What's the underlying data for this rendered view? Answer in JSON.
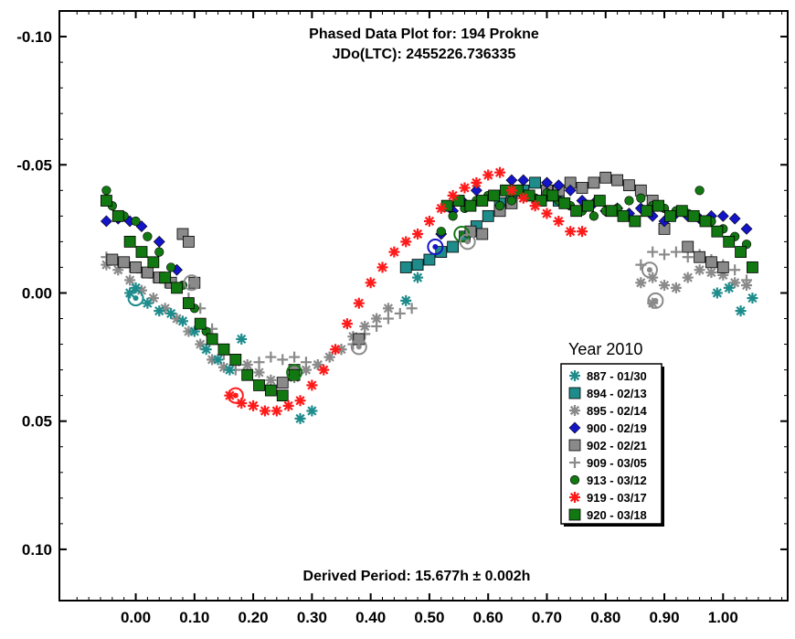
{
  "chart_data": {
    "type": "scatter",
    "title": "Phased Data Plot for: 194 Prokne",
    "subtitle": "JDo(LTC): 2455226.736335",
    "annotation": "Derived Period: 15.677h ± 0.002h",
    "xlim": [
      -0.13,
      1.11
    ],
    "ylim": [
      0.12,
      -0.11
    ],
    "y_inverted": true,
    "x_ticks": [
      "0.00",
      "0.10",
      "0.20",
      "0.30",
      "0.40",
      "0.50",
      "0.60",
      "0.70",
      "0.80",
      "0.90",
      "1.00"
    ],
    "y_ticks": [
      "-0.10",
      "-0.05",
      "0.00",
      "0.05",
      "0.10"
    ],
    "legend_title": "Year 2010",
    "legend_position": "center-right",
    "series": [
      {
        "name": "887 - 01/30",
        "color": "#1f8c8c",
        "marker": "asterisk",
        "points": [
          [
            -0.01,
            0.0
          ],
          [
            0.0,
            -0.002
          ],
          [
            0.02,
            0.004
          ],
          [
            0.04,
            0.007
          ],
          [
            0.06,
            0.008
          ],
          [
            0.08,
            0.011
          ],
          [
            0.1,
            0.015
          ],
          [
            0.12,
            0.022
          ],
          [
            0.14,
            0.026
          ],
          [
            0.16,
            0.03
          ],
          [
            0.18,
            0.018
          ],
          [
            0.28,
            0.049
          ],
          [
            0.3,
            0.046
          ],
          [
            0.46,
            0.003
          ],
          [
            0.48,
            -0.006
          ],
          [
            0.99,
            0.0
          ],
          [
            1.01,
            -0.002
          ],
          [
            1.03,
            0.007
          ],
          [
            1.05,
            0.002
          ]
        ]
      },
      {
        "name": "894 - 02/13",
        "color": "#1f8c8c",
        "marker": "square",
        "points": [
          [
            0.46,
            -0.01
          ],
          [
            0.48,
            -0.011
          ],
          [
            0.5,
            -0.013
          ],
          [
            0.52,
            -0.016
          ],
          [
            0.54,
            -0.018
          ],
          [
            0.56,
            -0.022
          ],
          [
            0.58,
            -0.026
          ],
          [
            0.6,
            -0.03
          ],
          [
            0.62,
            -0.035
          ],
          [
            0.64,
            -0.038
          ],
          [
            0.66,
            -0.04
          ],
          [
            0.68,
            -0.043
          ],
          [
            0.7,
            -0.038
          ],
          [
            0.72,
            -0.036
          ]
        ]
      },
      {
        "name": "895 - 02/14",
        "color": "#8a8a8a",
        "marker": "asterisk",
        "points": [
          [
            -0.05,
            -0.011
          ],
          [
            -0.03,
            -0.009
          ],
          [
            -0.01,
            -0.005
          ],
          [
            0.01,
            -0.001
          ],
          [
            0.03,
            0.002
          ],
          [
            0.05,
            0.006
          ],
          [
            0.07,
            0.01
          ],
          [
            0.09,
            0.015
          ],
          [
            0.11,
            0.02
          ],
          [
            0.13,
            0.026
          ],
          [
            0.15,
            0.029
          ],
          [
            0.17,
            0.027
          ],
          [
            0.19,
            0.028
          ],
          [
            0.21,
            0.031
          ],
          [
            0.23,
            0.034
          ],
          [
            0.25,
            0.035
          ],
          [
            0.27,
            0.033
          ],
          [
            0.29,
            0.03
          ],
          [
            0.31,
            0.028
          ],
          [
            0.33,
            0.025
          ],
          [
            0.35,
            0.022
          ],
          [
            0.37,
            0.017
          ],
          [
            0.39,
            0.013
          ],
          [
            0.41,
            0.01
          ],
          [
            0.43,
            0.006
          ],
          [
            0.86,
            -0.004
          ],
          [
            0.88,
            -0.006
          ],
          [
            0.9,
            -0.003
          ],
          [
            0.92,
            -0.002
          ],
          [
            0.94,
            -0.006
          ],
          [
            0.96,
            -0.009
          ],
          [
            0.98,
            -0.008
          ],
          [
            1.0,
            -0.007
          ],
          [
            1.02,
            -0.004
          ],
          [
            1.04,
            -0.003
          ],
          [
            0.88,
            0.004
          ]
        ]
      },
      {
        "name": "900 - 02/19",
        "color": "#1414c8",
        "marker": "diamond",
        "points": [
          [
            -0.05,
            -0.028
          ],
          [
            -0.03,
            -0.029
          ],
          [
            -0.01,
            -0.028
          ],
          [
            0.01,
            -0.026
          ],
          [
            0.04,
            -0.02
          ],
          [
            0.07,
            -0.009
          ],
          [
            0.52,
            -0.023
          ],
          [
            0.54,
            -0.032
          ],
          [
            0.56,
            -0.035
          ],
          [
            0.58,
            -0.04
          ],
          [
            0.64,
            -0.044
          ],
          [
            0.66,
            -0.044
          ],
          [
            0.7,
            -0.043
          ],
          [
            0.72,
            -0.042
          ],
          [
            0.74,
            -0.04
          ],
          [
            0.76,
            -0.036
          ],
          [
            0.78,
            -0.035
          ],
          [
            0.8,
            -0.032
          ],
          [
            0.82,
            -0.033
          ],
          [
            0.84,
            -0.031
          ],
          [
            0.86,
            -0.033
          ],
          [
            0.88,
            -0.03
          ],
          [
            0.9,
            -0.028
          ],
          [
            0.92,
            -0.031
          ],
          [
            0.94,
            -0.03
          ],
          [
            0.96,
            -0.029
          ],
          [
            0.98,
            -0.03
          ],
          [
            1.0,
            -0.03
          ],
          [
            1.02,
            -0.029
          ],
          [
            1.04,
            -0.025
          ]
        ]
      },
      {
        "name": "902 - 02/21",
        "color": "#8a8a8a",
        "marker": "square",
        "points": [
          [
            -0.04,
            -0.013
          ],
          [
            -0.02,
            -0.012
          ],
          [
            0.0,
            -0.01
          ],
          [
            0.02,
            -0.008
          ],
          [
            0.04,
            -0.006
          ],
          [
            0.06,
            -0.004
          ],
          [
            0.08,
            -0.023
          ],
          [
            0.09,
            -0.02
          ],
          [
            0.1,
            -0.004
          ],
          [
            0.25,
            0.035
          ],
          [
            0.27,
            0.03
          ],
          [
            0.38,
            0.018
          ],
          [
            0.57,
            -0.024
          ],
          [
            0.59,
            -0.023
          ],
          [
            0.62,
            -0.032
          ],
          [
            0.64,
            -0.035
          ],
          [
            0.7,
            -0.04
          ],
          [
            0.72,
            -0.04
          ],
          [
            0.74,
            -0.043
          ],
          [
            0.76,
            -0.041
          ],
          [
            0.78,
            -0.043
          ],
          [
            0.8,
            -0.045
          ],
          [
            0.82,
            -0.044
          ],
          [
            0.84,
            -0.042
          ],
          [
            0.86,
            -0.04
          ],
          [
            0.88,
            -0.036
          ],
          [
            0.9,
            -0.025
          ],
          [
            0.94,
            -0.018
          ],
          [
            0.96,
            -0.014
          ],
          [
            0.98,
            -0.012
          ],
          [
            1.0,
            -0.01
          ]
        ]
      },
      {
        "name": "909 - 03/05",
        "color": "#8a8a8a",
        "marker": "plus",
        "points": [
          [
            -0.05,
            -0.014
          ],
          [
            -0.03,
            -0.012
          ],
          [
            -0.01,
            -0.01
          ],
          [
            0.01,
            -0.008
          ],
          [
            0.03,
            -0.006
          ],
          [
            0.05,
            -0.004
          ],
          [
            0.07,
            -0.002
          ],
          [
            0.09,
            0.002
          ],
          [
            0.11,
            0.006
          ],
          [
            0.13,
            0.014
          ],
          [
            0.15,
            0.024
          ],
          [
            0.17,
            0.03
          ],
          [
            0.19,
            0.03
          ],
          [
            0.21,
            0.027
          ],
          [
            0.23,
            0.025
          ],
          [
            0.25,
            0.026
          ],
          [
            0.27,
            0.025
          ],
          [
            0.29,
            0.027
          ],
          [
            0.31,
            0.028
          ],
          [
            0.33,
            0.025
          ],
          [
            0.35,
            0.022
          ],
          [
            0.37,
            0.02
          ],
          [
            0.39,
            0.016
          ],
          [
            0.41,
            0.013
          ],
          [
            0.43,
            0.01
          ],
          [
            0.45,
            0.008
          ],
          [
            0.47,
            0.006
          ],
          [
            0.86,
            -0.011
          ],
          [
            0.88,
            -0.016
          ],
          [
            0.9,
            -0.015
          ],
          [
            0.92,
            -0.016
          ],
          [
            0.94,
            -0.014
          ],
          [
            0.96,
            -0.015
          ],
          [
            0.98,
            -0.013
          ],
          [
            1.0,
            -0.011
          ],
          [
            1.02,
            -0.009
          ],
          [
            1.04,
            -0.005
          ]
        ]
      },
      {
        "name": "913 - 03/12",
        "color": "#127812",
        "marker": "circle",
        "points": [
          [
            -0.05,
            -0.04
          ],
          [
            -0.04,
            -0.034
          ],
          [
            -0.02,
            -0.03
          ],
          [
            0.0,
            -0.028
          ],
          [
            0.02,
            -0.022
          ],
          [
            0.04,
            -0.016
          ],
          [
            0.06,
            -0.01
          ],
          [
            0.08,
            -0.003
          ],
          [
            0.1,
            0.006
          ],
          [
            0.12,
            0.015
          ],
          [
            0.52,
            -0.024
          ],
          [
            0.54,
            -0.03
          ],
          [
            0.56,
            -0.033
          ],
          [
            0.58,
            -0.036
          ],
          [
            0.6,
            -0.038
          ],
          [
            0.62,
            -0.034
          ],
          [
            0.64,
            -0.036
          ],
          [
            0.66,
            -0.038
          ],
          [
            0.68,
            -0.037
          ],
          [
            0.7,
            -0.039
          ],
          [
            0.72,
            -0.036
          ],
          [
            0.74,
            -0.034
          ],
          [
            0.76,
            -0.032
          ],
          [
            0.78,
            -0.03
          ],
          [
            0.8,
            -0.032
          ],
          [
            0.82,
            -0.033
          ],
          [
            0.84,
            -0.036
          ],
          [
            0.86,
            -0.037
          ],
          [
            0.88,
            -0.034
          ],
          [
            0.9,
            -0.033
          ],
          [
            0.92,
            -0.032
          ],
          [
            0.94,
            -0.031
          ],
          [
            0.96,
            -0.04
          ],
          [
            0.98,
            -0.028
          ],
          [
            1.0,
            -0.025
          ],
          [
            1.02,
            -0.022
          ],
          [
            1.04,
            -0.019
          ]
        ]
      },
      {
        "name": "919 - 03/17",
        "color": "#ff1a1a",
        "marker": "asterisk",
        "points": [
          [
            0.16,
            0.04
          ],
          [
            0.18,
            0.043
          ],
          [
            0.2,
            0.044
          ],
          [
            0.22,
            0.046
          ],
          [
            0.24,
            0.046
          ],
          [
            0.26,
            0.044
          ],
          [
            0.28,
            0.042
          ],
          [
            0.3,
            0.036
          ],
          [
            0.32,
            0.03
          ],
          [
            0.34,
            0.022
          ],
          [
            0.36,
            0.012
          ],
          [
            0.38,
            0.004
          ],
          [
            0.4,
            -0.004
          ],
          [
            0.42,
            -0.01
          ],
          [
            0.44,
            -0.016
          ],
          [
            0.46,
            -0.02
          ],
          [
            0.48,
            -0.023
          ],
          [
            0.5,
            -0.028
          ],
          [
            0.52,
            -0.033
          ],
          [
            0.54,
            -0.038
          ],
          [
            0.56,
            -0.041
          ],
          [
            0.58,
            -0.043
          ],
          [
            0.6,
            -0.046
          ],
          [
            0.62,
            -0.047
          ],
          [
            0.64,
            -0.04
          ],
          [
            0.66,
            -0.037
          ],
          [
            0.68,
            -0.034
          ],
          [
            0.7,
            -0.031
          ],
          [
            0.72,
            -0.028
          ],
          [
            0.74,
            -0.024
          ],
          [
            0.76,
            -0.024
          ]
        ]
      },
      {
        "name": "920 - 03/18",
        "color": "#127812",
        "marker": "square",
        "points": [
          [
            -0.05,
            -0.036
          ],
          [
            -0.03,
            -0.03
          ],
          [
            -0.01,
            -0.02
          ],
          [
            0.01,
            -0.016
          ],
          [
            0.03,
            -0.012
          ],
          [
            0.05,
            -0.006
          ],
          [
            0.07,
            -0.002
          ],
          [
            0.09,
            0.004
          ],
          [
            0.11,
            0.012
          ],
          [
            0.13,
            0.018
          ],
          [
            0.15,
            0.022
          ],
          [
            0.17,
            0.026
          ],
          [
            0.19,
            0.032
          ],
          [
            0.21,
            0.036
          ],
          [
            0.23,
            0.038
          ],
          [
            0.25,
            0.04
          ],
          [
            0.27,
            0.032
          ],
          [
            0.53,
            -0.034
          ],
          [
            0.55,
            -0.036
          ],
          [
            0.57,
            -0.034
          ],
          [
            0.59,
            -0.036
          ],
          [
            0.61,
            -0.038
          ],
          [
            0.63,
            -0.04
          ],
          [
            0.65,
            -0.04
          ],
          [
            0.67,
            -0.038
          ],
          [
            0.69,
            -0.036
          ],
          [
            0.71,
            -0.038
          ],
          [
            0.73,
            -0.035
          ],
          [
            0.75,
            -0.032
          ],
          [
            0.77,
            -0.034
          ],
          [
            0.79,
            -0.036
          ],
          [
            0.81,
            -0.032
          ],
          [
            0.83,
            -0.03
          ],
          [
            0.85,
            -0.028
          ],
          [
            0.87,
            -0.032
          ],
          [
            0.89,
            -0.034
          ],
          [
            0.91,
            -0.03
          ],
          [
            0.93,
            -0.032
          ],
          [
            0.95,
            -0.03
          ],
          [
            0.97,
            -0.028
          ],
          [
            0.99,
            -0.024
          ],
          [
            1.01,
            -0.02
          ],
          [
            1.03,
            -0.016
          ],
          [
            1.05,
            -0.01
          ]
        ]
      }
    ],
    "marked_points": [
      {
        "x": 0.0,
        "y": 0.002,
        "color": "#1f8c8c"
      },
      {
        "x": 0.095,
        "y": -0.004,
        "color": "#8a8a8a"
      },
      {
        "x": 0.17,
        "y": 0.04,
        "color": "#ff1a1a"
      },
      {
        "x": 0.27,
        "y": 0.031,
        "color": "#127812"
      },
      {
        "x": 0.38,
        "y": 0.021,
        "color": "#8a8a8a"
      },
      {
        "x": 0.51,
        "y": -0.018,
        "color": "#1414c8"
      },
      {
        "x": 0.555,
        "y": -0.023,
        "color": "#127812"
      },
      {
        "x": 0.565,
        "y": -0.02,
        "color": "#8a8a8a"
      },
      {
        "x": 0.875,
        "y": -0.009,
        "color": "#8a8a8a"
      },
      {
        "x": 0.885,
        "y": 0.003,
        "color": "#8a8a8a"
      }
    ]
  }
}
